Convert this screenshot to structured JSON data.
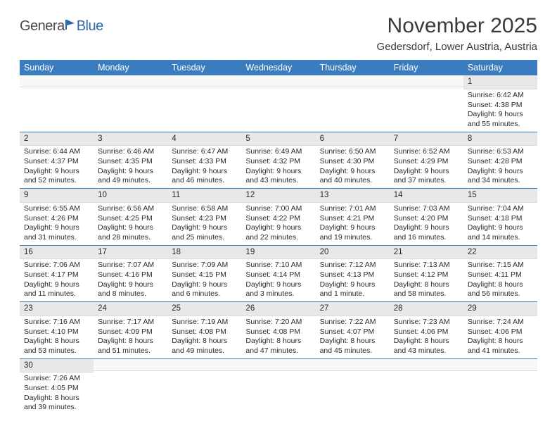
{
  "logo": {
    "part1": "Genera",
    "part2": "Blue"
  },
  "title": "November 2025",
  "location": "Gedersdorf, Lower Austria, Austria",
  "styling": {
    "header_bg": "#3b7cbf",
    "header_text": "#ffffff",
    "daynum_bg": "#e8e8e8",
    "border_color": "#3b7cbf",
    "body_text": "#2a2a2a",
    "title_color": "#3a3a3a",
    "page_bg": "#ffffff",
    "title_fontsize": 30,
    "location_fontsize": 15,
    "header_fontsize": 12.5,
    "cell_fontsize": 10.5
  },
  "day_names": [
    "Sunday",
    "Monday",
    "Tuesday",
    "Wednesday",
    "Thursday",
    "Friday",
    "Saturday"
  ],
  "weeks": [
    [
      null,
      null,
      null,
      null,
      null,
      null,
      {
        "n": "1",
        "sr": "Sunrise: 6:42 AM",
        "ss": "Sunset: 4:38 PM",
        "d1": "Daylight: 9 hours",
        "d2": "and 55 minutes."
      }
    ],
    [
      {
        "n": "2",
        "sr": "Sunrise: 6:44 AM",
        "ss": "Sunset: 4:37 PM",
        "d1": "Daylight: 9 hours",
        "d2": "and 52 minutes."
      },
      {
        "n": "3",
        "sr": "Sunrise: 6:46 AM",
        "ss": "Sunset: 4:35 PM",
        "d1": "Daylight: 9 hours",
        "d2": "and 49 minutes."
      },
      {
        "n": "4",
        "sr": "Sunrise: 6:47 AM",
        "ss": "Sunset: 4:33 PM",
        "d1": "Daylight: 9 hours",
        "d2": "and 46 minutes."
      },
      {
        "n": "5",
        "sr": "Sunrise: 6:49 AM",
        "ss": "Sunset: 4:32 PM",
        "d1": "Daylight: 9 hours",
        "d2": "and 43 minutes."
      },
      {
        "n": "6",
        "sr": "Sunrise: 6:50 AM",
        "ss": "Sunset: 4:30 PM",
        "d1": "Daylight: 9 hours",
        "d2": "and 40 minutes."
      },
      {
        "n": "7",
        "sr": "Sunrise: 6:52 AM",
        "ss": "Sunset: 4:29 PM",
        "d1": "Daylight: 9 hours",
        "d2": "and 37 minutes."
      },
      {
        "n": "8",
        "sr": "Sunrise: 6:53 AM",
        "ss": "Sunset: 4:28 PM",
        "d1": "Daylight: 9 hours",
        "d2": "and 34 minutes."
      }
    ],
    [
      {
        "n": "9",
        "sr": "Sunrise: 6:55 AM",
        "ss": "Sunset: 4:26 PM",
        "d1": "Daylight: 9 hours",
        "d2": "and 31 minutes."
      },
      {
        "n": "10",
        "sr": "Sunrise: 6:56 AM",
        "ss": "Sunset: 4:25 PM",
        "d1": "Daylight: 9 hours",
        "d2": "and 28 minutes."
      },
      {
        "n": "11",
        "sr": "Sunrise: 6:58 AM",
        "ss": "Sunset: 4:23 PM",
        "d1": "Daylight: 9 hours",
        "d2": "and 25 minutes."
      },
      {
        "n": "12",
        "sr": "Sunrise: 7:00 AM",
        "ss": "Sunset: 4:22 PM",
        "d1": "Daylight: 9 hours",
        "d2": "and 22 minutes."
      },
      {
        "n": "13",
        "sr": "Sunrise: 7:01 AM",
        "ss": "Sunset: 4:21 PM",
        "d1": "Daylight: 9 hours",
        "d2": "and 19 minutes."
      },
      {
        "n": "14",
        "sr": "Sunrise: 7:03 AM",
        "ss": "Sunset: 4:20 PM",
        "d1": "Daylight: 9 hours",
        "d2": "and 16 minutes."
      },
      {
        "n": "15",
        "sr": "Sunrise: 7:04 AM",
        "ss": "Sunset: 4:18 PM",
        "d1": "Daylight: 9 hours",
        "d2": "and 14 minutes."
      }
    ],
    [
      {
        "n": "16",
        "sr": "Sunrise: 7:06 AM",
        "ss": "Sunset: 4:17 PM",
        "d1": "Daylight: 9 hours",
        "d2": "and 11 minutes."
      },
      {
        "n": "17",
        "sr": "Sunrise: 7:07 AM",
        "ss": "Sunset: 4:16 PM",
        "d1": "Daylight: 9 hours",
        "d2": "and 8 minutes."
      },
      {
        "n": "18",
        "sr": "Sunrise: 7:09 AM",
        "ss": "Sunset: 4:15 PM",
        "d1": "Daylight: 9 hours",
        "d2": "and 6 minutes."
      },
      {
        "n": "19",
        "sr": "Sunrise: 7:10 AM",
        "ss": "Sunset: 4:14 PM",
        "d1": "Daylight: 9 hours",
        "d2": "and 3 minutes."
      },
      {
        "n": "20",
        "sr": "Sunrise: 7:12 AM",
        "ss": "Sunset: 4:13 PM",
        "d1": "Daylight: 9 hours",
        "d2": "and 1 minute."
      },
      {
        "n": "21",
        "sr": "Sunrise: 7:13 AM",
        "ss": "Sunset: 4:12 PM",
        "d1": "Daylight: 8 hours",
        "d2": "and 58 minutes."
      },
      {
        "n": "22",
        "sr": "Sunrise: 7:15 AM",
        "ss": "Sunset: 4:11 PM",
        "d1": "Daylight: 8 hours",
        "d2": "and 56 minutes."
      }
    ],
    [
      {
        "n": "23",
        "sr": "Sunrise: 7:16 AM",
        "ss": "Sunset: 4:10 PM",
        "d1": "Daylight: 8 hours",
        "d2": "and 53 minutes."
      },
      {
        "n": "24",
        "sr": "Sunrise: 7:17 AM",
        "ss": "Sunset: 4:09 PM",
        "d1": "Daylight: 8 hours",
        "d2": "and 51 minutes."
      },
      {
        "n": "25",
        "sr": "Sunrise: 7:19 AM",
        "ss": "Sunset: 4:08 PM",
        "d1": "Daylight: 8 hours",
        "d2": "and 49 minutes."
      },
      {
        "n": "26",
        "sr": "Sunrise: 7:20 AM",
        "ss": "Sunset: 4:08 PM",
        "d1": "Daylight: 8 hours",
        "d2": "and 47 minutes."
      },
      {
        "n": "27",
        "sr": "Sunrise: 7:22 AM",
        "ss": "Sunset: 4:07 PM",
        "d1": "Daylight: 8 hours",
        "d2": "and 45 minutes."
      },
      {
        "n": "28",
        "sr": "Sunrise: 7:23 AM",
        "ss": "Sunset: 4:06 PM",
        "d1": "Daylight: 8 hours",
        "d2": "and 43 minutes."
      },
      {
        "n": "29",
        "sr": "Sunrise: 7:24 AM",
        "ss": "Sunset: 4:06 PM",
        "d1": "Daylight: 8 hours",
        "d2": "and 41 minutes."
      }
    ],
    [
      {
        "n": "30",
        "sr": "Sunrise: 7:26 AM",
        "ss": "Sunset: 4:05 PM",
        "d1": "Daylight: 8 hours",
        "d2": "and 39 minutes."
      },
      null,
      null,
      null,
      null,
      null,
      null
    ]
  ]
}
